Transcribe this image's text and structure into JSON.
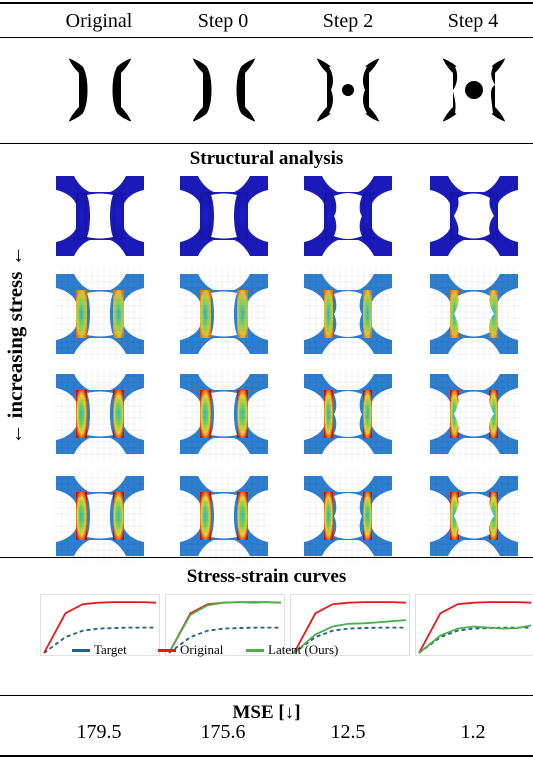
{
  "columns": [
    "Original",
    "Step 0",
    "Step 2",
    "Step 4"
  ],
  "sections": {
    "structural": "Structural analysis",
    "curves": "Stress-strain curves"
  },
  "side_label": "← increasing stress ←",
  "legend": [
    {
      "name": "Target",
      "color": "#1f5f8b"
    },
    {
      "name": "Original",
      "color": "#e41a1c"
    },
    {
      "name": "Latent (Ours)",
      "color": "#4daf4a"
    }
  ],
  "mse": {
    "title": "MSE [↓]",
    "values": [
      "179.5",
      "175.6",
      "12.5",
      "1.2"
    ]
  },
  "colors": {
    "stress_low": "#1a1acc",
    "stress_mid": "#2ecc71",
    "stress_high": "#cc1a1a"
  },
  "chart_data": [
    {
      "type": "line",
      "panel": "Original",
      "series": [
        {
          "name": "Target",
          "values": [
            0,
            0.3,
            0.42,
            0.46,
            0.47,
            0.48,
            0.48,
            0.48
          ]
        },
        {
          "name": "Original",
          "values": [
            0,
            0.75,
            0.92,
            0.95,
            0.96,
            0.96,
            0.96,
            0.95
          ]
        }
      ]
    },
    {
      "type": "line",
      "panel": "Step 0",
      "series": [
        {
          "name": "Target",
          "values": [
            0,
            0.3,
            0.42,
            0.46,
            0.47,
            0.48,
            0.48,
            0.48
          ]
        },
        {
          "name": "Original",
          "values": [
            0,
            0.75,
            0.92,
            0.95,
            0.96,
            0.96,
            0.96,
            0.95
          ]
        },
        {
          "name": "Latent (Ours)",
          "values": [
            0,
            0.72,
            0.9,
            0.95,
            0.96,
            0.95,
            0.96,
            0.95
          ]
        }
      ]
    },
    {
      "type": "line",
      "panel": "Step 2",
      "series": [
        {
          "name": "Target",
          "values": [
            0,
            0.3,
            0.42,
            0.46,
            0.47,
            0.48,
            0.48,
            0.48
          ]
        },
        {
          "name": "Original",
          "values": [
            0,
            0.75,
            0.92,
            0.95,
            0.96,
            0.96,
            0.96,
            0.95
          ]
        },
        {
          "name": "Latent (Ours)",
          "values": [
            0,
            0.35,
            0.5,
            0.55,
            0.56,
            0.58,
            0.6,
            0.62
          ]
        }
      ]
    },
    {
      "type": "line",
      "panel": "Step 4",
      "series": [
        {
          "name": "Target",
          "values": [
            0,
            0.3,
            0.42,
            0.46,
            0.47,
            0.48,
            0.48,
            0.48
          ]
        },
        {
          "name": "Original",
          "values": [
            0,
            0.75,
            0.92,
            0.95,
            0.96,
            0.96,
            0.96,
            0.95
          ]
        },
        {
          "name": "Latent (Ours)",
          "values": [
            0,
            0.33,
            0.46,
            0.5,
            0.48,
            0.46,
            0.47,
            0.52
          ]
        }
      ]
    }
  ]
}
